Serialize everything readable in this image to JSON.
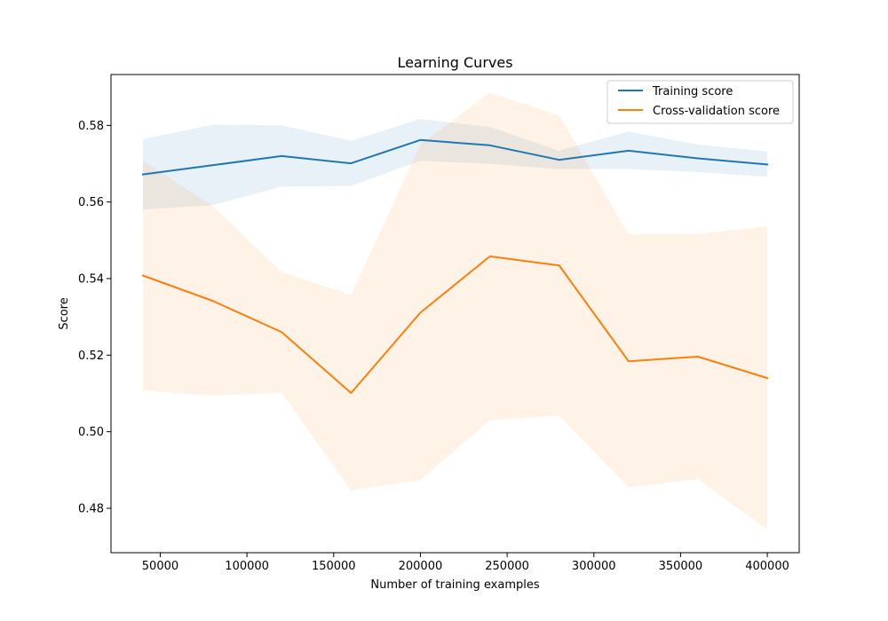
{
  "chart_data": {
    "type": "line",
    "title": "Learning Curves",
    "xlabel": "Number of training examples",
    "ylabel": "Score",
    "xlim": [
      21600,
      418400
    ],
    "ylim": [
      0.4684,
      0.5933
    ],
    "xticks": [
      50000,
      100000,
      150000,
      200000,
      250000,
      300000,
      350000,
      400000
    ],
    "xtick_labels": [
      "50000",
      "100000",
      "150000",
      "200000",
      "250000",
      "300000",
      "350000",
      "400000"
    ],
    "yticks": [
      0.48,
      0.5,
      0.52,
      0.54,
      0.56,
      0.58
    ],
    "ytick_labels": [
      "0.48",
      "0.50",
      "0.52",
      "0.54",
      "0.56",
      "0.58"
    ],
    "grid": false,
    "legend_position": "top-right",
    "x": [
      40000,
      80000,
      120000,
      160000,
      200000,
      240000,
      280000,
      320000,
      360000,
      400000
    ],
    "series": [
      {
        "name": "Training score",
        "color": "#1f77b4",
        "values": [
          0.5672,
          0.5696,
          0.572,
          0.5701,
          0.5762,
          0.5748,
          0.571,
          0.5734,
          0.5714,
          0.5698
        ],
        "band_lower": [
          0.558,
          0.5592,
          0.564,
          0.5642,
          0.5708,
          0.57,
          0.5686,
          0.5686,
          0.5678,
          0.5666
        ],
        "band_upper": [
          0.5764,
          0.5802,
          0.58,
          0.576,
          0.5817,
          0.5796,
          0.5734,
          0.5784,
          0.575,
          0.5732
        ]
      },
      {
        "name": "Cross-validation score",
        "color": "#ff7f0e",
        "values": [
          0.5408,
          0.5342,
          0.526,
          0.5101,
          0.5311,
          0.5458,
          0.5434,
          0.5184,
          0.5196,
          0.514
        ],
        "band_lower": [
          0.5108,
          0.5094,
          0.5102,
          0.4846,
          0.4874,
          0.503,
          0.5042,
          0.4855,
          0.4876,
          0.4745
        ],
        "band_upper": [
          0.5708,
          0.559,
          0.5418,
          0.5357,
          0.575,
          0.5886,
          0.5826,
          0.5515,
          0.5517,
          0.5536
        ]
      }
    ]
  }
}
